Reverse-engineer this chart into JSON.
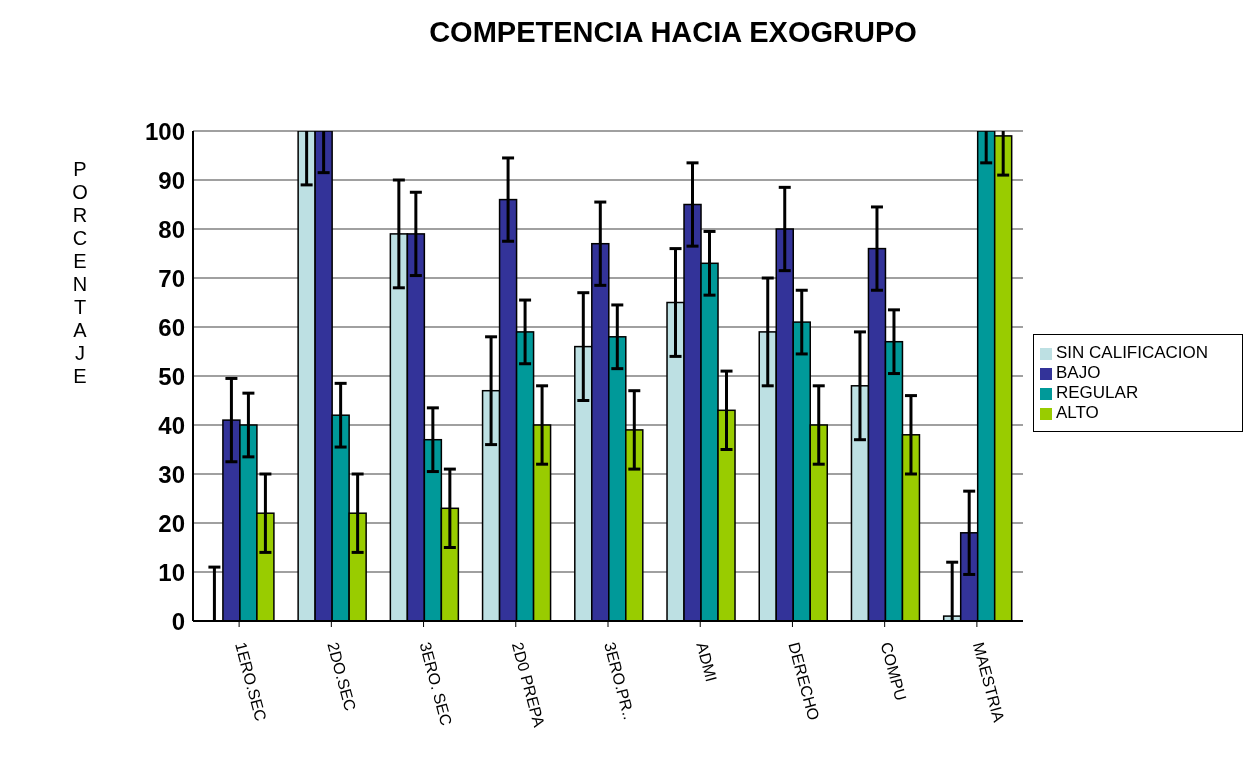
{
  "chart_data": {
    "type": "bar",
    "title": "COMPETENCIA HACIA EXOGRUPO",
    "ylabel": "PORCENTAJE",
    "categories": [
      "1ERO.SEC",
      "2DO.SEC",
      "3ERO. SEC",
      "2D0 PREPA",
      "3ERO.PR..",
      "ADMI",
      "DERECHO",
      "COMPU",
      "MAESTRIA"
    ],
    "series": [
      {
        "name": "SIN CALIFICACION",
        "color": "#bde0e3",
        "values": [
          0,
          100,
          79,
          47,
          56,
          65,
          59,
          48,
          1
        ],
        "errors": [
          [
            0,
            11
          ],
          [
            89,
            100
          ],
          11,
          11,
          11,
          11,
          11,
          11,
          [
            0,
            12
          ]
        ]
      },
      {
        "name": "BAJO",
        "color": "#333399",
        "values": [
          41,
          100,
          79,
          86,
          77,
          85,
          80,
          76,
          18
        ],
        "errors": [
          8.5,
          [
            91.5,
            100
          ],
          8.5,
          8.5,
          8.5,
          8.5,
          8.5,
          8.5,
          8.5
        ]
      },
      {
        "name": "REGULAR",
        "color": "#009999",
        "values": [
          40,
          42,
          37,
          59,
          58,
          73,
          61,
          57,
          100
        ],
        "errors": [
          6.5,
          6.5,
          6.5,
          6.5,
          6.5,
          6.5,
          6.5,
          6.5,
          [
            93.5,
            100
          ]
        ]
      },
      {
        "name": "ALTO",
        "color": "#99cc00",
        "values": [
          22,
          22,
          23,
          40,
          39,
          43,
          40,
          38,
          99
        ],
        "errors": [
          8,
          8,
          8,
          8,
          8,
          8,
          8,
          8,
          [
            91,
            100
          ]
        ]
      }
    ],
    "ylim": [
      0,
      100
    ],
    "yticks": [
      0,
      10,
      20,
      30,
      40,
      50,
      60,
      70,
      80,
      90,
      100
    ],
    "grid": "y",
    "legend": "right"
  }
}
